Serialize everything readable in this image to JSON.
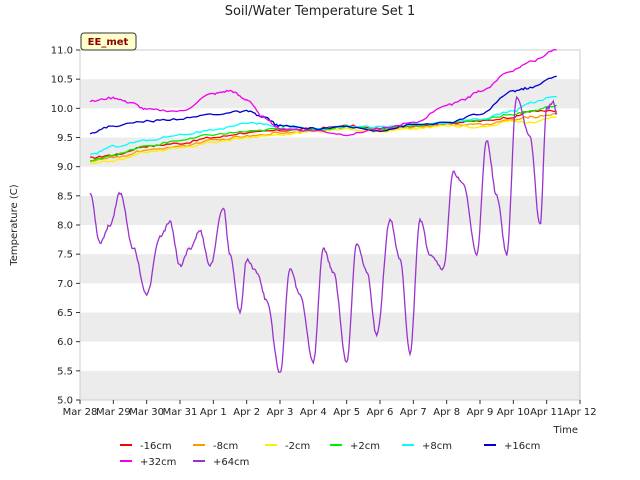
{
  "chart_data": {
    "type": "line",
    "title": "Soil/Water Temperature Set 1",
    "xlabel": "Time",
    "ylabel": "Temperature (C)",
    "station_label": "EE_met",
    "ylim": [
      5.0,
      11.0
    ],
    "xlim": [
      0,
      15
    ],
    "y_ticks": [
      "5.0",
      "5.5",
      "6.0",
      "6.5",
      "7.0",
      "7.5",
      "8.0",
      "8.5",
      "9.0",
      "9.5",
      "10.0",
      "10.5",
      "11.0"
    ],
    "x_ticks": [
      "Mar 28",
      "Mar 29",
      "Mar 30",
      "Mar 31",
      "Apr 1",
      "Apr 2",
      "Apr 3",
      "Apr 4",
      "Apr 5",
      "Apr 6",
      "Apr 7",
      "Apr 8",
      "Apr 9",
      "Apr 10",
      "Apr 11",
      "Apr 12"
    ],
    "grid": "banded",
    "legend_placement": "bottom",
    "series": [
      {
        "name": "-16cm",
        "color": "#ff0000",
        "x": [
          0.3,
          1,
          2,
          3,
          4,
          5,
          6,
          7,
          8,
          9,
          10,
          11,
          12,
          13,
          13.5,
          14.3
        ],
        "y": [
          9.15,
          9.2,
          9.35,
          9.4,
          9.5,
          9.58,
          9.62,
          9.65,
          9.7,
          9.65,
          9.7,
          9.75,
          9.78,
          9.85,
          9.95,
          9.95
        ]
      },
      {
        "name": "-8cm",
        "color": "#ff9900",
        "x": [
          0.3,
          1,
          2,
          3,
          4,
          5,
          6,
          7,
          8,
          9,
          10,
          11,
          12,
          13,
          13.5,
          14.3
        ],
        "y": [
          9.1,
          9.15,
          9.28,
          9.35,
          9.45,
          9.52,
          9.58,
          9.62,
          9.68,
          9.62,
          9.68,
          9.72,
          9.72,
          9.8,
          9.85,
          9.9
        ]
      },
      {
        "name": "-2cm",
        "color": "#ffee00",
        "x": [
          0.3,
          1,
          2,
          3,
          4,
          5,
          6,
          7,
          8,
          9,
          10,
          11,
          12,
          13,
          13.5,
          14.3
        ],
        "y": [
          9.05,
          9.1,
          9.25,
          9.32,
          9.42,
          9.5,
          9.55,
          9.6,
          9.65,
          9.6,
          9.65,
          9.7,
          9.68,
          9.78,
          9.75,
          9.85
        ]
      },
      {
        "name": "+2cm",
        "color": "#00ee00",
        "x": [
          0.3,
          1,
          2,
          3,
          4,
          5,
          6,
          7,
          8,
          9,
          10,
          11,
          12,
          13,
          13.5,
          14.3
        ],
        "y": [
          9.1,
          9.2,
          9.35,
          9.45,
          9.55,
          9.6,
          9.65,
          9.62,
          9.68,
          9.65,
          9.7,
          9.75,
          9.8,
          9.9,
          9.95,
          10.05
        ]
      },
      {
        "name": "+8cm",
        "color": "#00ffff",
        "x": [
          0.3,
          1,
          2,
          3,
          4,
          5,
          6,
          7,
          8,
          9,
          10,
          11,
          12,
          13,
          13.5,
          14.3
        ],
        "y": [
          9.2,
          9.35,
          9.45,
          9.55,
          9.62,
          9.75,
          9.7,
          9.65,
          9.7,
          9.68,
          9.72,
          9.75,
          9.82,
          9.95,
          10.1,
          10.2
        ]
      },
      {
        "name": "+16cm",
        "color": "#0000cc",
        "x": [
          0.3,
          1,
          2,
          3,
          4,
          5,
          5.5,
          6,
          7,
          8,
          9,
          10,
          11,
          12,
          13,
          13.5,
          14.3
        ],
        "y": [
          9.58,
          9.7,
          9.78,
          9.82,
          9.9,
          9.95,
          9.85,
          9.7,
          9.65,
          9.68,
          9.62,
          9.72,
          9.75,
          9.9,
          10.3,
          10.35,
          10.55
        ]
      },
      {
        "name": "+32cm",
        "color": "#ee00ee",
        "x": [
          0.3,
          1,
          1.5,
          2,
          3,
          4,
          4.5,
          5,
          5.5,
          6,
          7,
          8,
          9,
          10,
          11,
          11.5,
          12,
          13,
          13.5,
          14.3
        ],
        "y": [
          10.12,
          10.18,
          10.1,
          9.98,
          9.95,
          10.25,
          10.3,
          10.15,
          9.85,
          9.65,
          9.62,
          9.55,
          9.65,
          9.75,
          10.05,
          10.15,
          10.3,
          10.65,
          10.8,
          11.0
        ]
      },
      {
        "name": "+64cm",
        "color": "#9933cc",
        "x": [
          0.3,
          0.6,
          0.9,
          1.2,
          1.6,
          2,
          2.4,
          2.7,
          3,
          3.3,
          3.6,
          3.9,
          4.3,
          4.5,
          4.8,
          5,
          5.3,
          5.6,
          6,
          6.3,
          6.6,
          7,
          7.3,
          7.6,
          8,
          8.3,
          8.6,
          8.9,
          9.3,
          9.6,
          9.9,
          10.2,
          10.5,
          10.9,
          11.2,
          11.5,
          11.9,
          12.2,
          12.5,
          12.8,
          13.1,
          13.5,
          13.8,
          14.0,
          14.2,
          14.3
        ],
        "y": [
          8.55,
          7.7,
          8.0,
          8.55,
          7.6,
          6.8,
          7.8,
          8.05,
          7.3,
          7.6,
          7.9,
          7.3,
          8.3,
          7.5,
          6.5,
          7.4,
          7.2,
          6.7,
          5.45,
          7.25,
          6.8,
          5.65,
          7.6,
          7.2,
          5.65,
          7.7,
          7.2,
          6.1,
          8.1,
          7.4,
          5.8,
          8.1,
          7.5,
          7.25,
          8.9,
          8.7,
          7.5,
          9.45,
          8.5,
          7.5,
          10.2,
          9.5,
          8.0,
          10.0,
          10.1,
          9.9
        ]
      }
    ]
  }
}
